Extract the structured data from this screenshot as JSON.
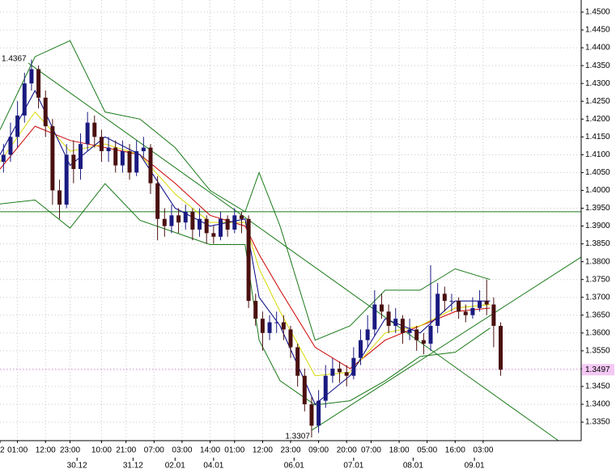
{
  "chart_data": {
    "type": "candlestick",
    "xlim": [
      0,
      166
    ],
    "ylim": [
      1.3298,
      1.4534
    ],
    "yticks": [
      {
        "value": 1.335,
        "label": "1.3350"
      },
      {
        "value": 1.34,
        "label": "1.3400"
      },
      {
        "value": 1.345,
        "label": "1.3450"
      },
      {
        "value": 1.35,
        "label": "1.3500"
      },
      {
        "value": 1.355,
        "label": "1.3550"
      },
      {
        "value": 1.36,
        "label": "1.3600"
      },
      {
        "value": 1.365,
        "label": "1.3650"
      },
      {
        "value": 1.37,
        "label": "1.3700"
      },
      {
        "value": 1.375,
        "label": "1.3750"
      },
      {
        "value": 1.38,
        "label": "1.3800"
      },
      {
        "value": 1.385,
        "label": "1.3850"
      },
      {
        "value": 1.39,
        "label": "1.3900"
      },
      {
        "value": 1.395,
        "label": "1.3950"
      },
      {
        "value": 1.4,
        "label": "1.4000"
      },
      {
        "value": 1.405,
        "label": "1.4050"
      },
      {
        "value": 1.41,
        "label": "1.4100"
      },
      {
        "value": 1.415,
        "label": "1.4150"
      },
      {
        "value": 1.42,
        "label": "1.4200"
      },
      {
        "value": 1.425,
        "label": "1.4250"
      },
      {
        "value": 1.43,
        "label": "1.4300"
      },
      {
        "value": 1.435,
        "label": "1.4350"
      },
      {
        "value": 1.44,
        "label": "1.4400"
      },
      {
        "value": 1.445,
        "label": "1.4450"
      },
      {
        "value": 1.45,
        "label": "1.4500"
      }
    ],
    "xticks": [
      {
        "value": 0,
        "label": "2"
      },
      {
        "value": 5,
        "label": "01:00"
      },
      {
        "value": 13,
        "label": "12:00"
      },
      {
        "value": 20,
        "label": "23:00"
      },
      {
        "value": 29,
        "label": "10:00"
      },
      {
        "value": 36,
        "label": "21:00"
      },
      {
        "value": 44,
        "label": "07:00"
      },
      {
        "value": 52,
        "label": "03:00"
      },
      {
        "value": 60,
        "label": "14:00"
      },
      {
        "value": 67,
        "label": "01:00"
      },
      {
        "value": 75,
        "label": "12:00"
      },
      {
        "value": 83,
        "label": "23:00"
      },
      {
        "value": 91,
        "label": "09:00"
      },
      {
        "value": 99,
        "label": "20:00"
      },
      {
        "value": 106,
        "label": "07:00"
      },
      {
        "value": 114,
        "label": "18:00"
      },
      {
        "value": 122,
        "label": "05:00"
      },
      {
        "value": 130,
        "label": "16:00"
      },
      {
        "value": 138,
        "label": "03:00"
      }
    ],
    "date_ticks": [
      {
        "value": 22,
        "label": "30.12"
      },
      {
        "value": 38,
        "label": "31.12"
      },
      {
        "value": 50,
        "label": "02.01"
      },
      {
        "value": 61,
        "label": "04.01"
      },
      {
        "value": 84,
        "label": "06.01"
      },
      {
        "value": 101,
        "label": "07.01"
      },
      {
        "value": 118,
        "label": "08.01"
      },
      {
        "value": 135.5,
        "label": "09.01"
      }
    ],
    "grid": true,
    "up_color": "#1a1a80",
    "down_color": "#4a1010",
    "x": [
      1,
      3,
      5,
      7,
      9,
      11,
      13,
      15,
      17,
      19,
      21,
      23,
      25,
      27,
      29,
      31,
      33,
      35,
      37,
      39,
      41,
      43,
      45,
      47,
      49,
      51,
      53,
      55,
      57,
      59,
      61,
      63,
      65,
      67,
      69,
      71,
      73,
      75,
      77,
      79,
      81,
      83,
      85,
      87,
      89,
      91,
      93,
      95,
      97,
      99,
      101,
      103,
      105,
      107,
      109,
      111,
      113,
      115,
      117,
      119,
      121,
      123,
      125,
      127,
      129,
      131,
      133,
      135,
      137,
      139,
      141,
      143
    ],
    "open": [
      1.408,
      1.41,
      1.415,
      1.421,
      1.43,
      1.434,
      1.426,
      1.418,
      1.4,
      1.396,
      1.41,
      1.406,
      1.413,
      1.419,
      1.415,
      1.411,
      1.412,
      1.407,
      1.411,
      1.405,
      1.411,
      1.412,
      1.402,
      1.392,
      1.39,
      1.393,
      1.391,
      1.394,
      1.389,
      1.392,
      1.388,
      1.387,
      1.392,
      1.389,
      1.393,
      1.392,
      1.369,
      1.364,
      1.36,
      1.363,
      1.363,
      1.361,
      1.356,
      1.348,
      1.34,
      1.334,
      1.341,
      1.348,
      1.35,
      1.349,
      1.348,
      1.353,
      1.358,
      1.361,
      1.368,
      1.366,
      1.362,
      1.364,
      1.36,
      1.361,
      1.358,
      1.357,
      1.362,
      1.371,
      1.369,
      1.369,
      1.366,
      1.365,
      1.367,
      1.369,
      1.368,
      1.362
    ],
    "high": [
      1.413,
      1.419,
      1.425,
      1.433,
      1.4367,
      1.435,
      1.428,
      1.42,
      1.403,
      1.413,
      1.414,
      1.416,
      1.422,
      1.421,
      1.417,
      1.415,
      1.414,
      1.414,
      1.413,
      1.414,
      1.415,
      1.413,
      1.404,
      1.395,
      1.396,
      1.395,
      1.396,
      1.395,
      1.395,
      1.393,
      1.39,
      1.394,
      1.393,
      1.395,
      1.394,
      1.393,
      1.371,
      1.366,
      1.365,
      1.366,
      1.365,
      1.362,
      1.357,
      1.35,
      1.342,
      1.344,
      1.351,
      1.353,
      1.352,
      1.351,
      1.356,
      1.361,
      1.365,
      1.372,
      1.371,
      1.368,
      1.367,
      1.365,
      1.364,
      1.362,
      1.36,
      1.379,
      1.374,
      1.373,
      1.371,
      1.37,
      1.368,
      1.37,
      1.372,
      1.375,
      1.37,
      1.363
    ],
    "low": [
      1.405,
      1.408,
      1.412,
      1.419,
      1.428,
      1.423,
      1.415,
      1.396,
      1.392,
      1.395,
      1.402,
      1.403,
      1.411,
      1.412,
      1.408,
      1.408,
      1.405,
      1.405,
      1.403,
      1.404,
      1.409,
      1.399,
      1.386,
      1.387,
      1.388,
      1.388,
      1.389,
      1.386,
      1.387,
      1.385,
      1.385,
      1.386,
      1.387,
      1.388,
      1.388,
      1.367,
      1.362,
      1.355,
      1.358,
      1.36,
      1.358,
      1.353,
      1.345,
      1.338,
      1.3307,
      1.332,
      1.339,
      1.346,
      1.346,
      1.345,
      1.347,
      1.351,
      1.356,
      1.359,
      1.364,
      1.36,
      1.36,
      1.357,
      1.358,
      1.355,
      1.354,
      1.355,
      1.36,
      1.366,
      1.366,
      1.364,
      1.363,
      1.364,
      1.366,
      1.365,
      1.356,
      1.348
    ],
    "close": [
      1.41,
      1.415,
      1.421,
      1.43,
      1.434,
      1.426,
      1.418,
      1.4,
      1.396,
      1.41,
      1.406,
      1.413,
      1.419,
      1.415,
      1.411,
      1.412,
      1.407,
      1.411,
      1.405,
      1.411,
      1.412,
      1.402,
      1.392,
      1.39,
      1.393,
      1.391,
      1.394,
      1.389,
      1.392,
      1.388,
      1.387,
      1.392,
      1.389,
      1.393,
      1.392,
      1.369,
      1.364,
      1.36,
      1.363,
      1.363,
      1.361,
      1.356,
      1.348,
      1.34,
      1.334,
      1.341,
      1.348,
      1.35,
      1.349,
      1.348,
      1.353,
      1.358,
      1.361,
      1.368,
      1.366,
      1.362,
      1.364,
      1.36,
      1.361,
      1.358,
      1.357,
      1.362,
      1.371,
      1.369,
      1.369,
      1.366,
      1.365,
      1.367,
      1.369,
      1.368,
      1.362,
      1.3497
    ],
    "indicators": {
      "x": [
        0,
        10,
        20,
        30,
        40,
        50,
        60,
        70,
        74,
        80,
        90,
        100,
        110,
        120,
        130,
        140
      ],
      "series": [
        {
          "color": "#1a7a1a",
          "values": [
            1.417,
            1.4375,
            1.442,
            1.422,
            1.42,
            1.412,
            1.4,
            1.394,
            1.405,
            1.39,
            1.358,
            1.362,
            1.372,
            1.372,
            1.378,
            1.375
          ]
        },
        {
          "color": "#1a7a1a",
          "values": [
            1.3962,
            1.3973,
            1.3894,
            1.4019,
            1.3916,
            1.3882,
            1.3848,
            1.3848,
            1.358,
            1.3466,
            1.3398,
            1.341,
            1.3466,
            1.3534,
            1.3546,
            1.3614
          ]
        },
        {
          "color": "#cc0000",
          "values": [
            1.406,
            1.418,
            1.414,
            1.412,
            1.41,
            1.402,
            1.393,
            1.39,
            1.382,
            1.372,
            1.356,
            1.35,
            1.358,
            1.362,
            1.366,
            1.367
          ]
        },
        {
          "color": "#d8d800",
          "values": [
            1.408,
            1.422,
            1.411,
            1.413,
            1.41,
            1.399,
            1.391,
            1.391,
            1.378,
            1.366,
            1.348,
            1.349,
            1.36,
            1.362,
            1.367,
            1.368
          ]
        },
        {
          "color": "#000080",
          "values": [
            1.41,
            1.428,
            1.407,
            1.415,
            1.41,
            1.395,
            1.39,
            1.392,
            1.37,
            1.362,
            1.34,
            1.348,
            1.364,
            1.36,
            1.369,
            1.369
          ]
        }
      ]
    },
    "trendlines": [
      {
        "x": [
          8.1,
          159.5
        ],
        "y": [
          1.4357,
          1.3298
        ]
      },
      {
        "x": [
          89,
          166
        ],
        "y": [
          1.3327,
          1.3813
        ]
      }
    ],
    "hline": 1.394,
    "line_color": "#1a7a1a",
    "current_price": {
      "value": 1.3497,
      "label": "1.3497"
    },
    "annotations": [
      {
        "x": 8,
        "y": 1.4367,
        "text": "1.4367"
      },
      {
        "x": 89,
        "y": 1.3307,
        "text": "1.3307"
      }
    ]
  }
}
